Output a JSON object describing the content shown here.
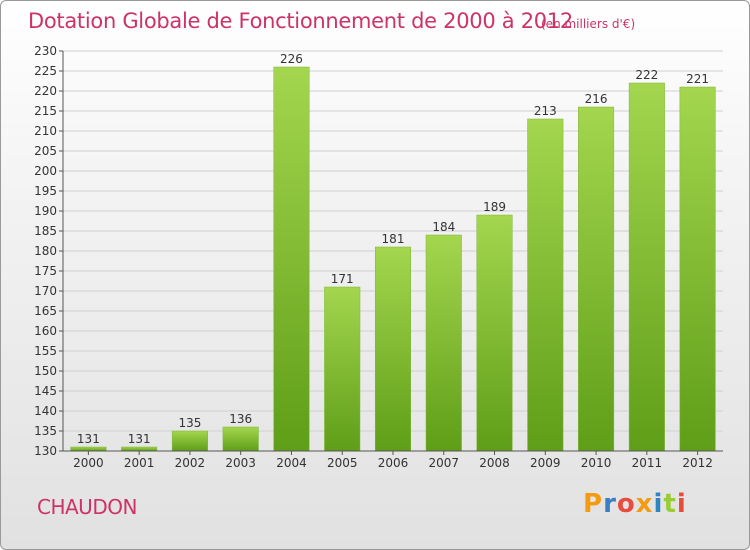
{
  "header": {
    "title": "Dotation Globale de Fonctionnement de 2000 à 2012",
    "subtitle": "(en milliers d'€)"
  },
  "footer": {
    "place": "CHAUDON",
    "logo_letters": [
      "P",
      "r",
      "o",
      "x",
      "i",
      "t",
      "i"
    ],
    "logo_colors": [
      "#f39c12",
      "#3b7dc4",
      "#e74c3c",
      "#f39c12",
      "#2e86c1",
      "#9acd32",
      "#e74c3c"
    ]
  },
  "colors": {
    "bar_light": "#a4d64f",
    "bar_dark": "#5f9e18",
    "text": "#333333",
    "accent": "#cc3366"
  },
  "chart_data": {
    "type": "bar",
    "title": "Dotation Globale de Fonctionnement de 2000 à 2012",
    "subtitle": "(en milliers d'€)",
    "categories": [
      "2000",
      "2001",
      "2002",
      "2003",
      "2004",
      "2005",
      "2006",
      "2007",
      "2008",
      "2009",
      "2010",
      "2011",
      "2012"
    ],
    "values": [
      131,
      131,
      135,
      136,
      226,
      171,
      181,
      184,
      189,
      213,
      216,
      222,
      221
    ],
    "ylim": [
      130,
      230
    ],
    "yticks": [
      130,
      135,
      140,
      145,
      150,
      155,
      160,
      165,
      170,
      175,
      180,
      185,
      190,
      195,
      200,
      205,
      210,
      215,
      220,
      225,
      230
    ],
    "grid": true,
    "data_labels": true,
    "legend": "none"
  }
}
